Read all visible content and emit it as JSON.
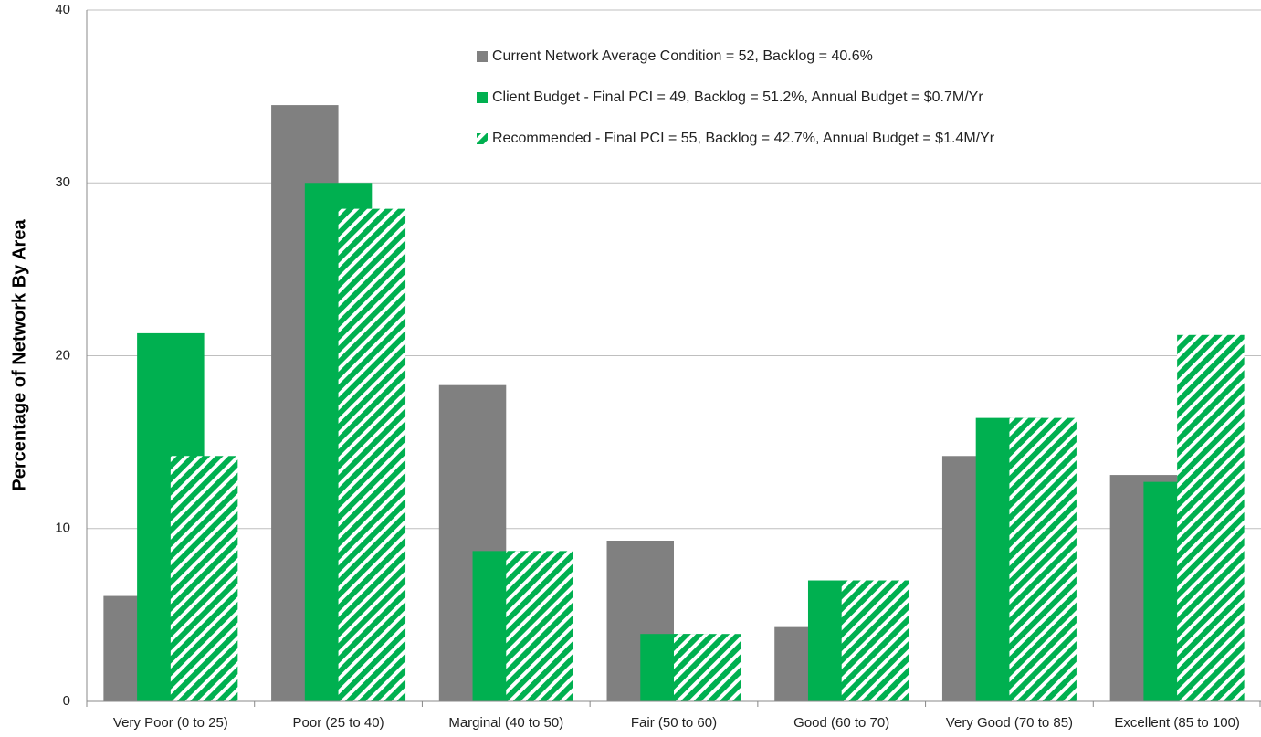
{
  "chart_data": {
    "type": "bar",
    "y_label": "Percentage of Network By Area",
    "categories": [
      "Very Poor (0 to 25)",
      "Poor (25 to 40)",
      "Marginal (40 to 50)",
      "Fair (50 to 60)",
      "Good (60 to 70)",
      "Very Good (70 to 85)",
      "Excellent (85 to 100)"
    ],
    "series": [
      {
        "name": "Current Network Average Condition  = 52, Backlog = 40.6%",
        "color": "#808080",
        "hatch": false,
        "values": [
          6.1,
          34.5,
          18.3,
          9.3,
          4.3,
          14.2,
          13.1
        ]
      },
      {
        "name": "Client Budget - Final PCI = 49, Backlog = 51.2%, Annual Budget = $0.7M/Yr",
        "color": "#00b050",
        "hatch": false,
        "values": [
          21.3,
          30.0,
          8.7,
          3.9,
          7.0,
          16.4,
          12.7
        ]
      },
      {
        "name": "Recommended - Final PCI = 55, Backlog = 42.7%, Annual Budget = $1.4M/Yr",
        "color": "#00b050",
        "hatch": true,
        "values": [
          14.2,
          28.5,
          8.7,
          3.9,
          7.0,
          16.4,
          21.2
        ]
      }
    ],
    "ylim": [
      0,
      40
    ],
    "yticks": [
      0,
      10,
      20,
      30,
      40
    ],
    "grid": true,
    "legend": "top-right"
  }
}
